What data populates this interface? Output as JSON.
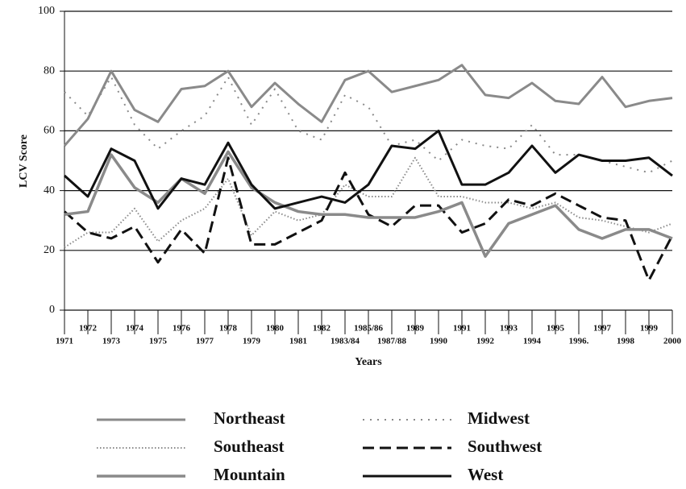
{
  "chart_data": {
    "type": "line",
    "y_label": "LCV Score",
    "x_label": "Years",
    "categories": [
      "1971",
      "1972",
      "1973",
      "1974",
      "1975",
      "1976",
      "1977",
      "1978",
      "1979",
      "1980",
      "1981",
      "1982",
      "1983/84",
      "1985/86",
      "1987/88",
      "1989",
      "1990",
      "1991",
      "1992",
      "1993",
      "1994",
      "1995",
      "1996.",
      "1997",
      "1998",
      "1999",
      "2000"
    ],
    "ylim": [
      0,
      100
    ],
    "yticks": [
      0,
      20,
      40,
      60,
      80,
      100
    ],
    "grid": true,
    "series": [
      {
        "name": "Northeast",
        "color": "#8a8a8a",
        "dash": "none",
        "width": 3,
        "values": [
          55,
          64,
          80,
          67,
          63,
          74,
          75,
          80,
          68,
          76,
          69,
          63,
          77,
          80,
          73,
          75,
          77,
          82,
          72,
          71,
          76,
          70,
          69,
          78,
          68,
          70,
          71
        ]
      },
      {
        "name": "Midwest",
        "color": "#8a8a8a",
        "dash": "2,7",
        "width": 2,
        "values": [
          73,
          65,
          78,
          62,
          54,
          60,
          65,
          78,
          62,
          74,
          60,
          57,
          72,
          68,
          55,
          57,
          50,
          57,
          55,
          54,
          62,
          52,
          52,
          50,
          48,
          46,
          50
        ]
      },
      {
        "name": "Southeast",
        "color": "#8a8a8a",
        "dash": "1.5,2.5",
        "width": 2,
        "values": [
          21,
          26,
          26,
          34,
          23,
          30,
          34,
          44,
          25,
          33,
          30,
          32,
          42,
          38,
          38,
          51,
          38,
          38,
          36,
          36,
          34,
          36,
          31,
          30,
          28,
          26,
          29
        ]
      },
      {
        "name": "Southwest",
        "color": "#111111",
        "dash": "14,7",
        "width": 3,
        "values": [
          33,
          26,
          24,
          28,
          16,
          27,
          19,
          51,
          22,
          22,
          26,
          30,
          46,
          32,
          28,
          35,
          35,
          26,
          29,
          37,
          35,
          39,
          35,
          31,
          30,
          10,
          25
        ]
      },
      {
        "name": "Mountain",
        "color": "#8a8a8a",
        "dash": "none",
        "width": 3.5,
        "values": [
          32,
          33,
          52,
          41,
          36,
          44,
          39,
          53,
          41,
          36,
          33,
          32,
          32,
          31,
          31,
          31,
          33,
          36,
          18,
          29,
          32,
          35,
          27,
          24,
          27,
          27,
          24
        ]
      },
      {
        "name": "West",
        "color": "#111111",
        "dash": "none",
        "width": 3,
        "values": [
          45,
          38,
          54,
          50,
          34,
          44,
          42,
          56,
          42,
          34,
          36,
          38,
          36,
          42,
          55,
          54,
          60,
          42,
          42,
          46,
          55,
          46,
          52,
          50,
          50,
          51,
          45
        ]
      }
    ]
  }
}
